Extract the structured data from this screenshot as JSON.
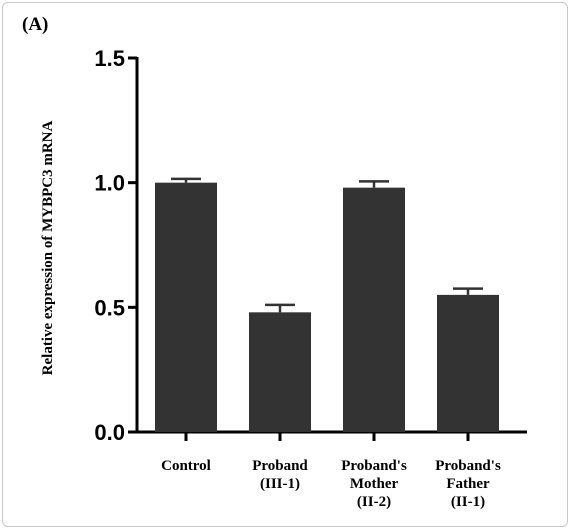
{
  "panel_label": "(A)",
  "chart_data": {
    "type": "bar",
    "title": "",
    "xlabel": "",
    "ylabel": "Relative expression of MYBPC3 mRNA",
    "ylim": [
      0,
      1.5
    ],
    "yticks": [
      "0.0",
      "0.5",
      "1.0",
      "1.5"
    ],
    "categories": [
      [
        "Control"
      ],
      [
        "Proband",
        "(III-1)"
      ],
      [
        "Proband's",
        "Mother",
        "(II-2)"
      ],
      [
        "Proband's",
        "Father",
        "(II-1)"
      ]
    ],
    "values": [
      1.0,
      0.48,
      0.98,
      0.55
    ],
    "errors": [
      0.015,
      0.03,
      0.025,
      0.025
    ],
    "bar_color": "#333333",
    "grid": false
  }
}
